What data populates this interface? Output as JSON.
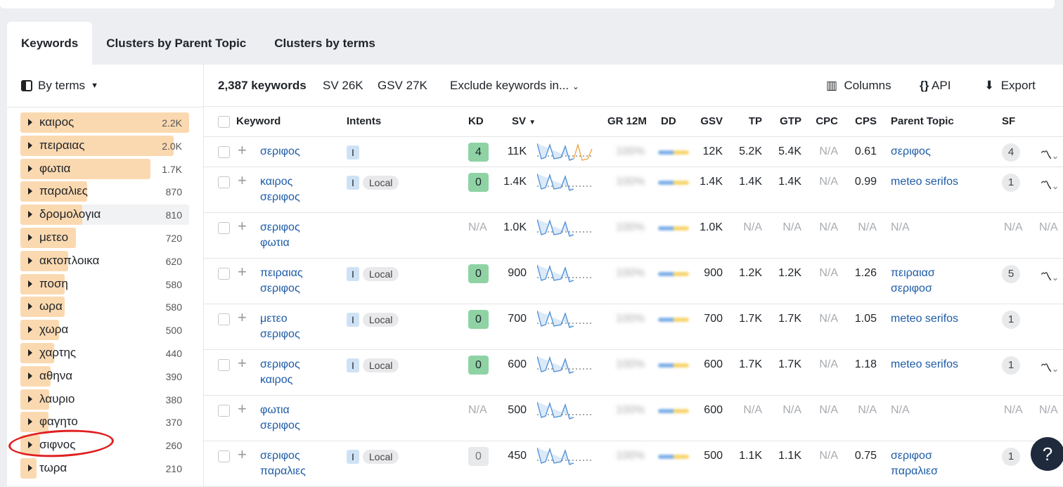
{
  "tabs": [
    "Keywords",
    "Clusters by Parent Topic",
    "Clusters by terms"
  ],
  "left": {
    "mode": "By terms",
    "terms": [
      {
        "label": "καιρος",
        "count": "2.2K",
        "value": 2200
      },
      {
        "label": "πειραιας",
        "count": "2.0K",
        "value": 2000
      },
      {
        "label": "φωτια",
        "count": "1.7K",
        "value": 1700
      },
      {
        "label": "παραλιες",
        "count": "870",
        "value": 870
      },
      {
        "label": "δρομολογια",
        "count": "810",
        "value": 810
      },
      {
        "label": "μετεο",
        "count": "720",
        "value": 720
      },
      {
        "label": "ακτοπλοικα",
        "count": "620",
        "value": 620
      },
      {
        "label": "ποση",
        "count": "580",
        "value": 580
      },
      {
        "label": "ωρα",
        "count": "580",
        "value": 580
      },
      {
        "label": "χωρα",
        "count": "500",
        "value": 500
      },
      {
        "label": "χαρτης",
        "count": "440",
        "value": 440
      },
      {
        "label": "αθηνα",
        "count": "390",
        "value": 390
      },
      {
        "label": "λαυριο",
        "count": "380",
        "value": 380
      },
      {
        "label": "φαγητο",
        "count": "370",
        "value": 370
      },
      {
        "label": "σιφνος",
        "count": "260",
        "value": 260
      },
      {
        "label": "τωρα",
        "count": "210",
        "value": 210
      }
    ]
  },
  "toolbar": {
    "count": "2,387 keywords",
    "sv": "SV 26K",
    "gsv": "GSV 27K",
    "exclude": "Exclude keywords in...",
    "columns": "Columns",
    "api": "API",
    "export": "Export"
  },
  "columns": [
    "Keyword",
    "Intents",
    "KD",
    "SV",
    "GR 12M",
    "DD",
    "GSV",
    "TP",
    "GTP",
    "CPC",
    "CPS",
    "Parent Topic",
    "SF"
  ],
  "rows": [
    {
      "kw": [
        "σεριφος"
      ],
      "intents": [
        "I"
      ],
      "kd": "4",
      "kd_color": "#8fd3a5",
      "sv": "11K",
      "gr": "100%",
      "gsv": "12K",
      "tp": "5.2K",
      "gtp": "5.4K",
      "cpc": "N/A",
      "cps": "0.61",
      "pt": [
        "σεριφος"
      ],
      "sf": "4",
      "trend": true
    },
    {
      "kw": [
        "καιρος",
        "σεριφος"
      ],
      "intents": [
        "I",
        "Local"
      ],
      "kd": "0",
      "kd_color": "#8fd3a5",
      "sv": "1.4K",
      "gr": "100%",
      "gsv": "1.4K",
      "tp": "1.4K",
      "gtp": "1.4K",
      "cpc": "N/A",
      "cps": "0.99",
      "pt": [
        "meteo serifos"
      ],
      "sf": "1",
      "trend": true
    },
    {
      "kw": [
        "σεριφος",
        "φωτια"
      ],
      "intents": [],
      "kd": "N/A",
      "sv": "1.0K",
      "gr": "100%",
      "gsv": "1.0K",
      "tp": "N/A",
      "gtp": "N/A",
      "cpc": "N/A",
      "cps": "N/A",
      "pt_na": "N/A",
      "sf_na": "N/A",
      "trend_na": "N/A"
    },
    {
      "kw": [
        "πειραιας",
        "σεριφος"
      ],
      "intents": [
        "I",
        "Local"
      ],
      "kd": "0",
      "kd_color": "#8fd3a5",
      "sv": "900",
      "gr": "100%",
      "gsv": "900",
      "tp": "1.2K",
      "gtp": "1.2K",
      "cpc": "N/A",
      "cps": "1.26",
      "pt": [
        "πειραιασ",
        "σεριφοσ"
      ],
      "sf": "5",
      "trend": true
    },
    {
      "kw": [
        "μετεο",
        "σεριφος"
      ],
      "intents": [
        "I",
        "Local"
      ],
      "kd": "0",
      "kd_color": "#8fd3a5",
      "sv": "700",
      "gr": "100%",
      "gsv": "700",
      "tp": "1.7K",
      "gtp": "1.7K",
      "cpc": "N/A",
      "cps": "1.05",
      "pt": [
        "meteo serifos"
      ],
      "sf": "1",
      "trend": false
    },
    {
      "kw": [
        "σεριφος",
        "καιρος"
      ],
      "intents": [
        "I",
        "Local"
      ],
      "kd": "0",
      "kd_color": "#8fd3a5",
      "sv": "600",
      "gr": "100%",
      "gsv": "600",
      "tp": "1.7K",
      "gtp": "1.7K",
      "cpc": "N/A",
      "cps": "1.18",
      "pt": [
        "meteo serifos"
      ],
      "sf": "1",
      "trend": true
    },
    {
      "kw": [
        "φωτια",
        "σεριφος"
      ],
      "intents": [],
      "kd": "N/A",
      "sv": "500",
      "gr": "100%",
      "gsv": "600",
      "tp": "N/A",
      "gtp": "N/A",
      "cpc": "N/A",
      "cps": "N/A",
      "pt_na": "N/A",
      "sf_na": "N/A",
      "trend_na": "N/A"
    },
    {
      "kw": [
        "σεριφος",
        "παραλιες"
      ],
      "intents": [
        "I",
        "Local"
      ],
      "kd": "0",
      "kd_color": "#e8e9eb",
      "sv": "450",
      "gr": "100%",
      "gsv": "500",
      "tp": "1.1K",
      "gtp": "1.1K",
      "cpc": "N/A",
      "cps": "0.75",
      "pt": [
        "σεριφοσ",
        "παραλιεσ"
      ],
      "sf": "1",
      "trend": false
    }
  ],
  "help": "?"
}
